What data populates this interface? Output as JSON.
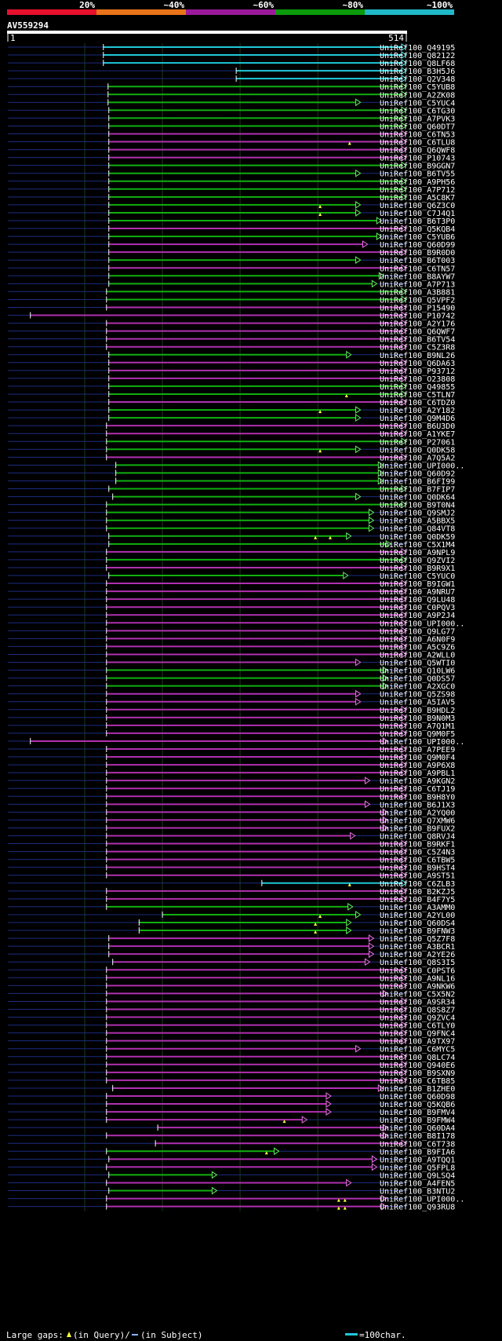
{
  "chart_data": {
    "type": "alignment-overview",
    "title": "AV559294",
    "query_length": 514,
    "ruler": {
      "start_label": "1",
      "end_label": "514"
    },
    "identity_scale": {
      "labels": [
        "20%",
        "~40%",
        "~60%",
        "~80%",
        "~100%"
      ],
      "colors": [
        "#e8112d",
        "#e8741a",
        "#9a1a9a",
        "#0a9a0a",
        "#20b8c8"
      ]
    },
    "series": [
      {
        "name": "UniRef100_Q49195",
        "start": 124,
        "end": 514,
        "color": "cyan"
      },
      {
        "name": "UniRef100_Q82122",
        "start": 124,
        "end": 514,
        "color": "cyan"
      },
      {
        "name": "UniRef100_Q8LF68",
        "start": 124,
        "end": 514,
        "color": "cyan"
      },
      {
        "name": "UniRef100_B3H5J6",
        "start": 295,
        "end": 514,
        "color": "cyan"
      },
      {
        "name": "UniRef100_Q2V348",
        "start": 295,
        "end": 514,
        "color": "cyan"
      },
      {
        "name": "UniRef100_C5YUB8",
        "start": 130,
        "end": 514,
        "color": "green"
      },
      {
        "name": "UniRef100_A2ZK08",
        "start": 130,
        "end": 514,
        "color": "green"
      },
      {
        "name": "UniRef100_C5YUC4",
        "start": 130,
        "end": 455,
        "color": "green"
      },
      {
        "name": "UniRef100_C6TG30",
        "start": 131,
        "end": 514,
        "color": "green"
      },
      {
        "name": "UniRef100_A7PVK3",
        "start": 131,
        "end": 514,
        "color": "green"
      },
      {
        "name": "UniRef100_Q60DT7",
        "start": 131,
        "end": 514,
        "color": "green"
      },
      {
        "name": "UniRef100_C6TN53",
        "start": 131,
        "end": 514,
        "color": "magenta"
      },
      {
        "name": "UniRef100_C6TLU8",
        "start": 131,
        "end": 514,
        "color": "magenta",
        "gaps": [
          441
        ]
      },
      {
        "name": "UniRef100_Q6QWF8",
        "start": 131,
        "end": 514,
        "color": "magenta"
      },
      {
        "name": "UniRef100_P10743",
        "start": 131,
        "end": 514,
        "color": "magenta"
      },
      {
        "name": "UniRef100_B9GGN7",
        "start": 131,
        "end": 514,
        "color": "green"
      },
      {
        "name": "UniRef100_B6TV55",
        "start": 131,
        "end": 455,
        "color": "green"
      },
      {
        "name": "UniRef100_A9PH56",
        "start": 131,
        "end": 514,
        "color": "green"
      },
      {
        "name": "UniRef100_A7P712",
        "start": 131,
        "end": 514,
        "color": "green"
      },
      {
        "name": "UniRef100_A5C8K7",
        "start": 131,
        "end": 514,
        "color": "green"
      },
      {
        "name": "UniRef100_Q6Z3C0",
        "start": 131,
        "end": 455,
        "color": "green",
        "gaps": [
          403
        ]
      },
      {
        "name": "UniRef100_C7J4Q1",
        "start": 131,
        "end": 455,
        "color": "green",
        "gaps": [
          403
        ]
      },
      {
        "name": "UniRef100_B6T3P0",
        "start": 131,
        "end": 482,
        "color": "green"
      },
      {
        "name": "UniRef100_Q5KQB4",
        "start": 131,
        "end": 514,
        "color": "magenta"
      },
      {
        "name": "UniRef100_C5YUB6",
        "start": 131,
        "end": 482,
        "color": "green"
      },
      {
        "name": "UniRef100_Q60D99",
        "start": 131,
        "end": 464,
        "color": "magenta"
      },
      {
        "name": "UniRef100_B9R0D0",
        "start": 131,
        "end": 514,
        "color": "magenta"
      },
      {
        "name": "UniRef100_B6T003",
        "start": 131,
        "end": 455,
        "color": "green"
      },
      {
        "name": "UniRef100_C6TN57",
        "start": 131,
        "end": 514,
        "color": "magenta"
      },
      {
        "name": "UniRef100_B8AYW7",
        "start": 131,
        "end": 485,
        "color": "green"
      },
      {
        "name": "UniRef100_A7P713",
        "start": 131,
        "end": 476,
        "color": "green"
      },
      {
        "name": "UniRef100_A3B881",
        "start": 128,
        "end": 514,
        "color": "green"
      },
      {
        "name": "UniRef100_Q5VPF2",
        "start": 128,
        "end": 514,
        "color": "green"
      },
      {
        "name": "UniRef100_P15490",
        "start": 128,
        "end": 514,
        "color": "magenta"
      },
      {
        "name": "UniRef100_P10742",
        "start": 30,
        "end": 514,
        "color": "magenta"
      },
      {
        "name": "UniRef100_A2Y176",
        "start": 128,
        "end": 514,
        "color": "magenta"
      },
      {
        "name": "UniRef100_Q6QWF7",
        "start": 128,
        "end": 514,
        "color": "magenta"
      },
      {
        "name": "UniRef100_B6TV54",
        "start": 128,
        "end": 514,
        "color": "magenta"
      },
      {
        "name": "UniRef100_C5Z3R8",
        "start": 128,
        "end": 514,
        "color": "magenta"
      },
      {
        "name": "UniRef100_B9NL26",
        "start": 131,
        "end": 443,
        "color": "green"
      },
      {
        "name": "UniRef100_Q6DA63",
        "start": 131,
        "end": 514,
        "color": "magenta"
      },
      {
        "name": "UniRef100_P93712",
        "start": 131,
        "end": 514,
        "color": "magenta"
      },
      {
        "name": "UniRef100_O23808",
        "start": 131,
        "end": 514,
        "color": "magenta"
      },
      {
        "name": "UniRef100_Q49855",
        "start": 131,
        "end": 514,
        "color": "green"
      },
      {
        "name": "UniRef100_C5TLN7",
        "start": 131,
        "end": 514,
        "color": "green",
        "gaps": [
          437
        ]
      },
      {
        "name": "UniRef100_C6TDZ0",
        "start": 131,
        "end": 514,
        "color": "magenta"
      },
      {
        "name": "UniRef100_A2Y182",
        "start": 131,
        "end": 455,
        "color": "green",
        "gaps": [
          403
        ]
      },
      {
        "name": "UniRef100_Q9M4D6",
        "start": 131,
        "end": 455,
        "color": "green"
      },
      {
        "name": "UniRef100_B6U3D0",
        "start": 128,
        "end": 514,
        "color": "magenta"
      },
      {
        "name": "UniRef100_A1YKE7",
        "start": 128,
        "end": 514,
        "color": "magenta"
      },
      {
        "name": "UniRef100_P27061",
        "start": 128,
        "end": 514,
        "color": "green"
      },
      {
        "name": "UniRef100_Q0DK58",
        "start": 128,
        "end": 455,
        "color": "green",
        "gaps": [
          403
        ]
      },
      {
        "name": "UniRef100_A7Q5A2",
        "start": 128,
        "end": 514,
        "color": "magenta"
      },
      {
        "name": "UniRef100_UPI000..",
        "start": 140,
        "end": 484,
        "color": "green"
      },
      {
        "name": "UniRef100_Q60D92",
        "start": 140,
        "end": 484,
        "color": "green"
      },
      {
        "name": "UniRef100_B6FI99",
        "start": 140,
        "end": 484,
        "color": "green"
      },
      {
        "name": "UniRef100_B7FIP7",
        "start": 131,
        "end": 514,
        "color": "green"
      },
      {
        "name": "UniRef100_Q0DK64",
        "start": 136,
        "end": 455,
        "color": "green"
      },
      {
        "name": "UniRef100_B9T0N4",
        "start": 128,
        "end": 514,
        "color": "green"
      },
      {
        "name": "UniRef100_Q9SMJ2",
        "start": 128,
        "end": 472,
        "color": "green"
      },
      {
        "name": "UniRef100_A5BBX5",
        "start": 128,
        "end": 472,
        "color": "green"
      },
      {
        "name": "UniRef100_Q84VT8",
        "start": 128,
        "end": 472,
        "color": "green"
      },
      {
        "name": "UniRef100_Q0DK59",
        "start": 131,
        "end": 443,
        "color": "green",
        "gaps": [
          397,
          416
        ]
      },
      {
        "name": "UniRef100_C5X1M4",
        "start": 131,
        "end": 494,
        "color": "green"
      },
      {
        "name": "UniRef100_A9NPL9",
        "start": 128,
        "end": 514,
        "color": "magenta"
      },
      {
        "name": "UniRef100_Q9ZVI2",
        "start": 128,
        "end": 514,
        "color": "green"
      },
      {
        "name": "UniRef100_B9R9X1",
        "start": 128,
        "end": 514,
        "color": "magenta"
      },
      {
        "name": "UniRef100_C5YUC0",
        "start": 131,
        "end": 439,
        "color": "green"
      },
      {
        "name": "UniRef100_B9IGW1",
        "start": 128,
        "end": 514,
        "color": "magenta"
      },
      {
        "name": "UniRef100_A9NRU7",
        "start": 128,
        "end": 514,
        "color": "magenta"
      },
      {
        "name": "UniRef100_Q9LU48",
        "start": 128,
        "end": 514,
        "color": "magenta"
      },
      {
        "name": "UniRef100_C0PQV3",
        "start": 128,
        "end": 514,
        "color": "magenta"
      },
      {
        "name": "UniRef100_A9P2J4",
        "start": 128,
        "end": 514,
        "color": "magenta"
      },
      {
        "name": "UniRef100_UPI000..",
        "start": 128,
        "end": 514,
        "color": "magenta"
      },
      {
        "name": "UniRef100_Q9LG77",
        "start": 128,
        "end": 514,
        "color": "magenta"
      },
      {
        "name": "UniRef100_A6N0F9",
        "start": 128,
        "end": 514,
        "color": "magenta"
      },
      {
        "name": "UniRef100_A5C9Z6",
        "start": 128,
        "end": 514,
        "color": "magenta"
      },
      {
        "name": "UniRef100_A2WLL0",
        "start": 128,
        "end": 514,
        "color": "magenta"
      },
      {
        "name": "UniRef100_Q5WTI0",
        "start": 128,
        "end": 455,
        "color": "magenta"
      },
      {
        "name": "UniRef100_Q10LW6",
        "start": 128,
        "end": 490,
        "color": "green"
      },
      {
        "name": "UniRef100_Q0DS57",
        "start": 128,
        "end": 490,
        "color": "green"
      },
      {
        "name": "UniRef100_A2XGC0",
        "start": 128,
        "end": 490,
        "color": "green"
      },
      {
        "name": "UniRef100_Q5ZS98",
        "start": 128,
        "end": 455,
        "color": "magenta"
      },
      {
        "name": "UniRef100_A5IAV5",
        "start": 128,
        "end": 455,
        "color": "magenta"
      },
      {
        "name": "UniRef100_B9HDL2",
        "start": 128,
        "end": 514,
        "color": "magenta"
      },
      {
        "name": "UniRef100_B9N0M3",
        "start": 128,
        "end": 514,
        "color": "magenta"
      },
      {
        "name": "UniRef100_A7Q1M1",
        "start": 128,
        "end": 514,
        "color": "magenta"
      },
      {
        "name": "UniRef100_Q9M0F5",
        "start": 128,
        "end": 514,
        "color": "magenta"
      },
      {
        "name": "UniRef100_UPI000..",
        "start": 30,
        "end": 490,
        "color": "magenta"
      },
      {
        "name": "UniRef100_A7PEE9",
        "start": 128,
        "end": 514,
        "color": "magenta"
      },
      {
        "name": "UniRef100_Q9M0F4",
        "start": 128,
        "end": 514,
        "color": "magenta"
      },
      {
        "name": "UniRef100_A9P6X8",
        "start": 128,
        "end": 514,
        "color": "magenta"
      },
      {
        "name": "UniRef100_A9PBL1",
        "start": 128,
        "end": 514,
        "color": "magenta"
      },
      {
        "name": "UniRef100_A9KGN2",
        "start": 128,
        "end": 467,
        "color": "magenta"
      },
      {
        "name": "UniRef100_C6TJ19",
        "start": 128,
        "end": 514,
        "color": "magenta"
      },
      {
        "name": "UniRef100_B9H8Y0",
        "start": 128,
        "end": 514,
        "color": "magenta"
      },
      {
        "name": "UniRef100_B6J1X3",
        "start": 128,
        "end": 467,
        "color": "magenta"
      },
      {
        "name": "UniRef100_A2YQ00",
        "start": 128,
        "end": 490,
        "color": "magenta"
      },
      {
        "name": "UniRef100_Q7XMW6",
        "start": 128,
        "end": 490,
        "color": "magenta"
      },
      {
        "name": "UniRef100_B9FUX2",
        "start": 128,
        "end": 490,
        "color": "magenta"
      },
      {
        "name": "UniRef100_Q8RVJ4",
        "start": 128,
        "end": 448,
        "color": "magenta"
      },
      {
        "name": "UniRef100_B9RKF1",
        "start": 128,
        "end": 514,
        "color": "magenta"
      },
      {
        "name": "UniRef100_C5Z4N3",
        "start": 128,
        "end": 514,
        "color": "magenta"
      },
      {
        "name": "UniRef100_C6TBW5",
        "start": 128,
        "end": 514,
        "color": "magenta"
      },
      {
        "name": "UniRef100_B9HST4",
        "start": 128,
        "end": 514,
        "color": "magenta"
      },
      {
        "name": "UniRef100_A9ST51",
        "start": 128,
        "end": 514,
        "color": "magenta"
      },
      {
        "name": "UniRef100_C6ZLB3",
        "start": 328,
        "end": 514,
        "color": "cyan",
        "gaps": [
          441
        ]
      },
      {
        "name": "UniRef100_B2KZJ5",
        "start": 128,
        "end": 514,
        "color": "magenta"
      },
      {
        "name": "UniRef100_B4F7Y5",
        "start": 128,
        "end": 514,
        "color": "magenta"
      },
      {
        "name": "UniRef100_A3AMM0",
        "start": 128,
        "end": 445,
        "color": "green"
      },
      {
        "name": "UniRef100_A2YL00",
        "start": 200,
        "end": 455,
        "color": "green",
        "gaps": [
          403
        ]
      },
      {
        "name": "UniRef100_Q60DS4",
        "start": 170,
        "end": 443,
        "color": "green",
        "gaps": [
          397
        ]
      },
      {
        "name": "UniRef100_B9FNW3",
        "start": 170,
        "end": 443,
        "color": "green",
        "gaps": [
          397
        ]
      },
      {
        "name": "UniRef100_Q5Z7F8",
        "start": 131,
        "end": 472,
        "color": "magenta"
      },
      {
        "name": "UniRef100_A3BCR1",
        "start": 131,
        "end": 472,
        "color": "magenta"
      },
      {
        "name": "UniRef100_A2YE26",
        "start": 131,
        "end": 472,
        "color": "magenta"
      },
      {
        "name": "UniRef100_Q8S3I5",
        "start": 136,
        "end": 467,
        "color": "magenta"
      },
      {
        "name": "UniRef100_C0PST6",
        "start": 128,
        "end": 514,
        "color": "magenta"
      },
      {
        "name": "UniRef100_A9NL16",
        "start": 128,
        "end": 514,
        "color": "magenta"
      },
      {
        "name": "UniRef100_A9NKW6",
        "start": 128,
        "end": 514,
        "color": "magenta"
      },
      {
        "name": "UniRef100_C5X5N2",
        "start": 128,
        "end": 490,
        "color": "magenta"
      },
      {
        "name": "UniRef100_A9SR34",
        "start": 128,
        "end": 514,
        "color": "magenta"
      },
      {
        "name": "UniRef100_Q8S8Z7",
        "start": 128,
        "end": 514,
        "color": "magenta"
      },
      {
        "name": "UniRef100_Q9ZVC4",
        "start": 128,
        "end": 514,
        "color": "magenta"
      },
      {
        "name": "UniRef100_C6TLY0",
        "start": 128,
        "end": 514,
        "color": "magenta"
      },
      {
        "name": "UniRef100_Q9FNC4",
        "start": 128,
        "end": 514,
        "color": "magenta"
      },
      {
        "name": "UniRef100_A9TX97",
        "start": 128,
        "end": 514,
        "color": "magenta"
      },
      {
        "name": "UniRef100_C6MYC5",
        "start": 128,
        "end": 455,
        "color": "magenta"
      },
      {
        "name": "UniRef100_Q8LC74",
        "start": 128,
        "end": 514,
        "color": "magenta"
      },
      {
        "name": "UniRef100_Q940E6",
        "start": 128,
        "end": 514,
        "color": "magenta"
      },
      {
        "name": "UniRef100_B9SXN9",
        "start": 128,
        "end": 514,
        "color": "magenta"
      },
      {
        "name": "UniRef100_C6TB85",
        "start": 128,
        "end": 514,
        "color": "magenta"
      },
      {
        "name": "UniRef100_B1ZHE0",
        "start": 136,
        "end": 484,
        "color": "magenta"
      },
      {
        "name": "UniRef100_Q60D98",
        "start": 128,
        "end": 417,
        "color": "magenta"
      },
      {
        "name": "UniRef100_Q5KQB6",
        "start": 128,
        "end": 417,
        "color": "magenta"
      },
      {
        "name": "UniRef100_B9FMV4",
        "start": 128,
        "end": 417,
        "color": "magenta"
      },
      {
        "name": "UniRef100_B9FMW4",
        "start": 128,
        "end": 386,
        "color": "magenta",
        "gaps": [
          357
        ]
      },
      {
        "name": "UniRef100_Q60DA4",
        "start": 194,
        "end": 490,
        "color": "magenta"
      },
      {
        "name": "UniRef100_B8I178",
        "start": 128,
        "end": 490,
        "color": "magenta"
      },
      {
        "name": "UniRef100_C6T738",
        "start": 191,
        "end": 514,
        "color": "magenta"
      },
      {
        "name": "UniRef100_B9FIA6",
        "start": 128,
        "end": 350,
        "color": "green",
        "gaps": [
          334
        ]
      },
      {
        "name": "UniRef100_A9TQQ1",
        "start": 131,
        "end": 476,
        "color": "magenta"
      },
      {
        "name": "UniRef100_Q5FPL8",
        "start": 128,
        "end": 476,
        "color": "magenta"
      },
      {
        "name": "UniRef100_Q9LSQ4",
        "start": 131,
        "end": 270,
        "color": "green"
      },
      {
        "name": "UniRef100_A4FEN5",
        "start": 128,
        "end": 443,
        "color": "magenta"
      },
      {
        "name": "UniRef100_B3NTU2",
        "start": 131,
        "end": 270,
        "color": "green"
      },
      {
        "name": "UniRef100_UPI000..",
        "start": 128,
        "end": 488,
        "color": "magenta",
        "gaps": [
          427,
          435
        ]
      },
      {
        "name": "UniRef100_Q93RU8",
        "start": 128,
        "end": 488,
        "color": "magenta",
        "gaps": [
          427,
          435
        ]
      }
    ],
    "legend": {
      "gaps_query": "Large gaps:",
      "query_text": "(in Query)/",
      "subject_text": "(in Subject)",
      "scale_text": "=100char."
    }
  }
}
